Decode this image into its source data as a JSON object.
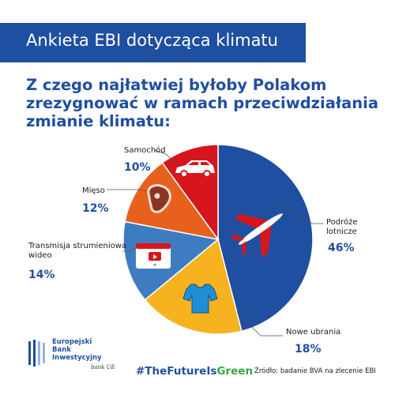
{
  "header": {
    "title": "Ankieta EBI dotycząca klimatu",
    "question_lines": [
      "Z czego najłatwiej byłoby Polakom",
      "zrezygnować w ramach przeciwdziałania",
      "zmianie klimatu:"
    ]
  },
  "chart_data": {
    "type": "pie",
    "start_angle_deg": 0,
    "direction": "clockwise",
    "slices": [
      {
        "label": "Podróże lotnicze",
        "label_lines": [
          "Podróże",
          "lotnicze"
        ],
        "value": 46,
        "display": "46%",
        "color": "#1f4fa0",
        "icon": "airplane-icon"
      },
      {
        "label": "Nowe ubrania",
        "label_lines": [
          "Nowe ubrania"
        ],
        "value": 18,
        "display": "18%",
        "color": "#f7b21f",
        "icon": "tshirt-icon"
      },
      {
        "label": "Transmisja strumieniowa wideo",
        "label_lines": [
          "Transmisja strumieniowa",
          "wideo"
        ],
        "value": 14,
        "display": "14%",
        "color": "#3e7cc1",
        "icon": "video-player-icon"
      },
      {
        "label": "Mięso",
        "label_lines": [
          "Mięso"
        ],
        "value": 12,
        "display": "12%",
        "color": "#e8611c",
        "icon": "steak-icon"
      },
      {
        "label": "Samochód",
        "label_lines": [
          "Samochód"
        ],
        "value": 10,
        "display": "10%",
        "color": "#d7151c",
        "icon": "car-icon"
      }
    ]
  },
  "footer": {
    "logo_lines": [
      "Europejski",
      "Bank",
      "Inwestycyjny"
    ],
    "signature": "bank UE",
    "hashtag_part1": "#TheFutureIs",
    "hashtag_part2": "Green",
    "source": "Źródło: badanie BVA na zlecenie EBI"
  },
  "colors": {
    "brand_blue": "#1f4fa0",
    "hashtag_green": "#36a845"
  }
}
